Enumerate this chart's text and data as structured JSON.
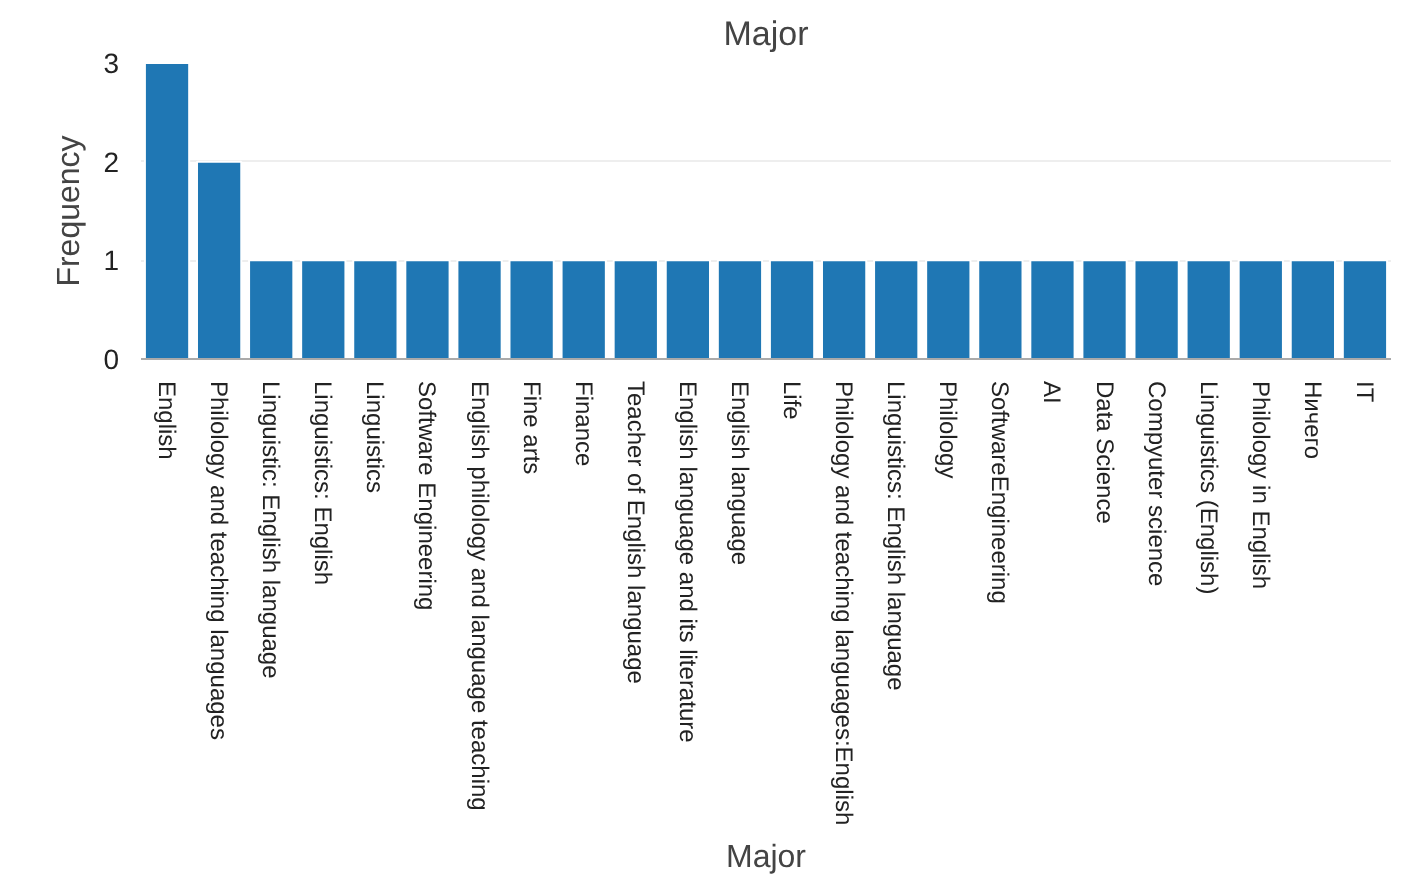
{
  "chart_data": {
    "type": "bar",
    "title": "Major",
    "xlabel": "Major",
    "ylabel": "Frequency",
    "categories": [
      "English",
      "Philology and teaching languages",
      "Linguistic: English language",
      "Linguistics: English",
      "Linguistics",
      "Software Engineering",
      "English philology and language teaching",
      "Fine arts",
      "Finance",
      "Teacher of English language",
      "English language and its literature",
      "English language",
      "Life",
      "Philology and teaching languages:English",
      "Linguistics: English language",
      "Philology",
      "SoftwareEngineering",
      "AI",
      "Data Science",
      "Compyuter science",
      "Linguistics (English)",
      "Philology in English",
      "Ничего",
      "IT"
    ],
    "values": [
      3,
      2,
      1,
      1,
      1,
      1,
      1,
      1,
      1,
      1,
      1,
      1,
      1,
      1,
      1,
      1,
      1,
      1,
      1,
      1,
      1,
      1,
      1,
      1
    ],
    "color": "#1f77b4",
    "ylim": [
      0,
      3
    ],
    "yticks": [
      0,
      1,
      2,
      3
    ],
    "grid": "y"
  }
}
